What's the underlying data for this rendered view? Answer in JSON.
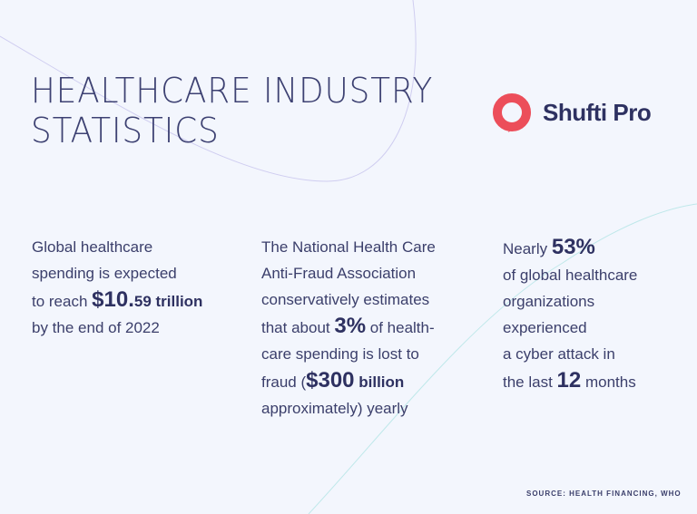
{
  "header": {
    "title": [
      "HEALTHCARE INDUSTRY",
      "STATISTICS"
    ],
    "logo": "Shufti Pro"
  },
  "stats": [
    {
      "lines": [
        [
          "Global healthcare"
        ],
        [
          "spending is expected"
        ],
        [
          "to reach ",
          "$10.",
          "59 trillion"
        ],
        [
          "by the end of 2022"
        ]
      ]
    },
    {
      "lines": [
        [
          "The National Health Care"
        ],
        [
          "Anti-Fraud Association"
        ],
        [
          "conservatively estimates"
        ],
        [
          "that about ",
          "3%",
          " of health-"
        ],
        [
          "care spending is lost to"
        ],
        [
          "fraud (",
          "$300",
          " billion"
        ],
        [
          "approximately) yearly"
        ]
      ]
    },
    {
      "lines": [
        [
          "Nearly ",
          "53%"
        ],
        [
          "of global healthcare"
        ],
        [
          "organizations"
        ],
        [
          "experienced"
        ],
        [
          "a cyber attack in"
        ],
        [
          "the last ",
          "12",
          " months"
        ]
      ]
    }
  ],
  "source": "SOURCE: HEALTH FINANCING, WHO"
}
